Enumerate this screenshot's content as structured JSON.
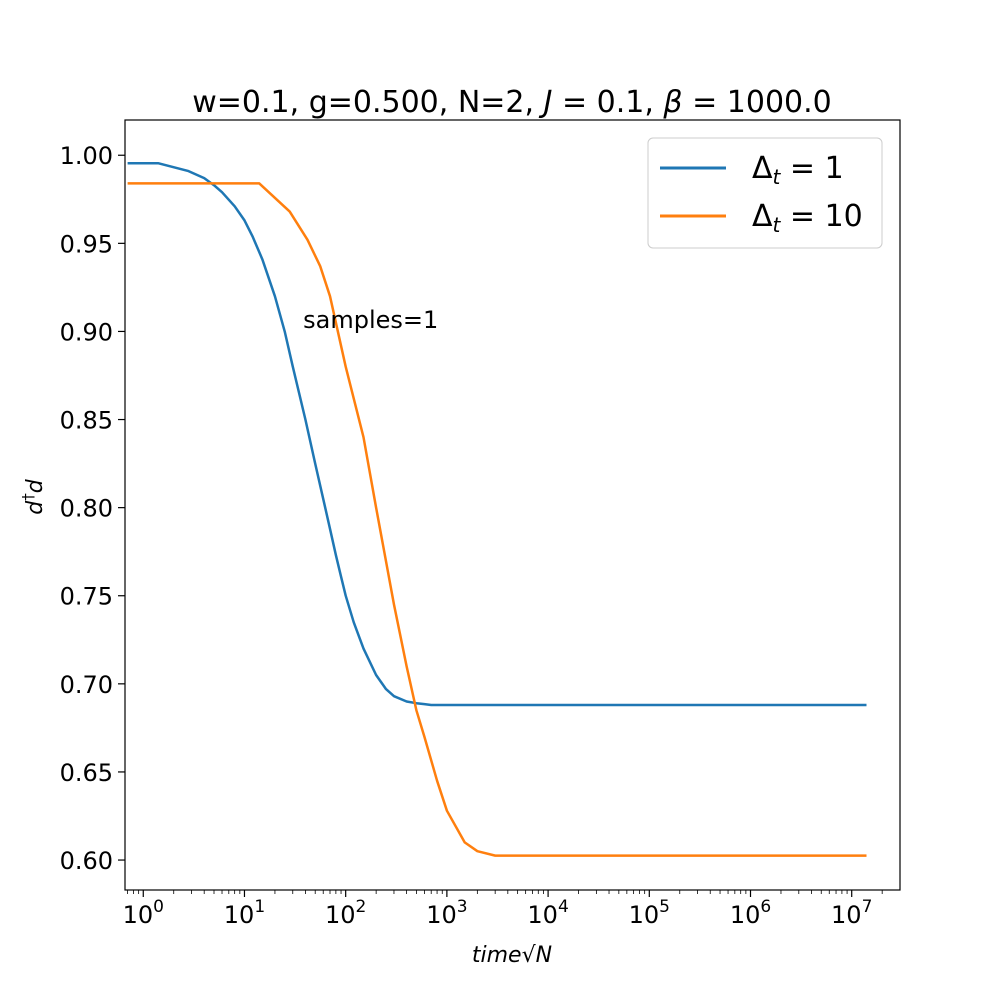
{
  "chart_data": {
    "type": "line",
    "title": {
      "prefix": "w=0.1, g=0.500, N=2, ",
      "j_symbol": "J",
      "j_value": " = 0.1, ",
      "beta_symbol": "β",
      "beta_value": " = 1000.0"
    },
    "xlabel": {
      "main": "time",
      "root": "√",
      "var": "N"
    },
    "ylabel": {
      "base": "d",
      "sup": "†",
      "tail": "d"
    },
    "x_scale": "log",
    "xlim": [
      0.66,
      30000000
    ],
    "ylim": [
      0.583,
      1.02
    ],
    "x_ticks": [
      {
        "value": 1,
        "base": "10",
        "exp": "0"
      },
      {
        "value": 10,
        "base": "10",
        "exp": "1"
      },
      {
        "value": 100,
        "base": "10",
        "exp": "2"
      },
      {
        "value": 1000,
        "base": "10",
        "exp": "3"
      },
      {
        "value": 10000,
        "base": "10",
        "exp": "4"
      },
      {
        "value": 100000,
        "base": "10",
        "exp": "5"
      },
      {
        "value": 1000000,
        "base": "10",
        "exp": "6"
      },
      {
        "value": 10000000,
        "base": "10",
        "exp": "7"
      }
    ],
    "y_ticks": [
      {
        "value": 0.6,
        "label": "0.60"
      },
      {
        "value": 0.65,
        "label": "0.65"
      },
      {
        "value": 0.7,
        "label": "0.70"
      },
      {
        "value": 0.75,
        "label": "0.75"
      },
      {
        "value": 0.8,
        "label": "0.80"
      },
      {
        "value": 0.85,
        "label": "0.85"
      },
      {
        "value": 0.9,
        "label": "0.90"
      },
      {
        "value": 0.95,
        "label": "0.95"
      },
      {
        "value": 1.0,
        "label": "1.00"
      }
    ],
    "series": [
      {
        "name": "Δt = 1",
        "legend": {
          "sym": "Δ",
          "sub": "t",
          "rest": " = 1"
        },
        "color": "#1f77b4",
        "x": [
          0.7,
          1.4,
          2.8,
          4,
          5,
          6,
          8,
          10,
          12,
          15,
          20,
          25,
          30,
          40,
          50,
          60,
          70,
          80,
          90,
          100,
          120,
          150,
          200,
          250,
          300,
          400,
          500,
          600,
          700,
          1000,
          2000,
          10000,
          100000,
          1000000,
          14000000
        ],
        "y": [
          0.9955,
          0.9955,
          0.991,
          0.987,
          0.983,
          0.979,
          0.971,
          0.963,
          0.954,
          0.941,
          0.92,
          0.9,
          0.88,
          0.85,
          0.825,
          0.805,
          0.788,
          0.773,
          0.761,
          0.75,
          0.735,
          0.72,
          0.705,
          0.697,
          0.693,
          0.69,
          0.689,
          0.6885,
          0.688,
          0.688,
          0.688,
          0.688,
          0.688,
          0.688,
          0.688
        ]
      },
      {
        "name": "Δt = 10",
        "legend": {
          "sym": "Δ",
          "sub": "t",
          "rest": " = 10"
        },
        "color": "#ff7f0e",
        "x": [
          0.7,
          14,
          28,
          42,
          56,
          70,
          100,
          150,
          200,
          300,
          400,
          500,
          600,
          800,
          1000,
          1500,
          2000,
          3000,
          5000,
          10000,
          100000,
          1000000,
          14000000
        ],
        "y": [
          0.984,
          0.984,
          0.968,
          0.952,
          0.937,
          0.92,
          0.88,
          0.84,
          0.8,
          0.745,
          0.71,
          0.685,
          0.67,
          0.645,
          0.628,
          0.61,
          0.605,
          0.6025,
          0.6025,
          0.6025,
          0.6025,
          0.6025,
          0.6025
        ]
      }
    ],
    "legend_position": "top-right",
    "annotation": {
      "text": "samples=1",
      "x": 38,
      "y": 0.902
    },
    "grid": false
  }
}
